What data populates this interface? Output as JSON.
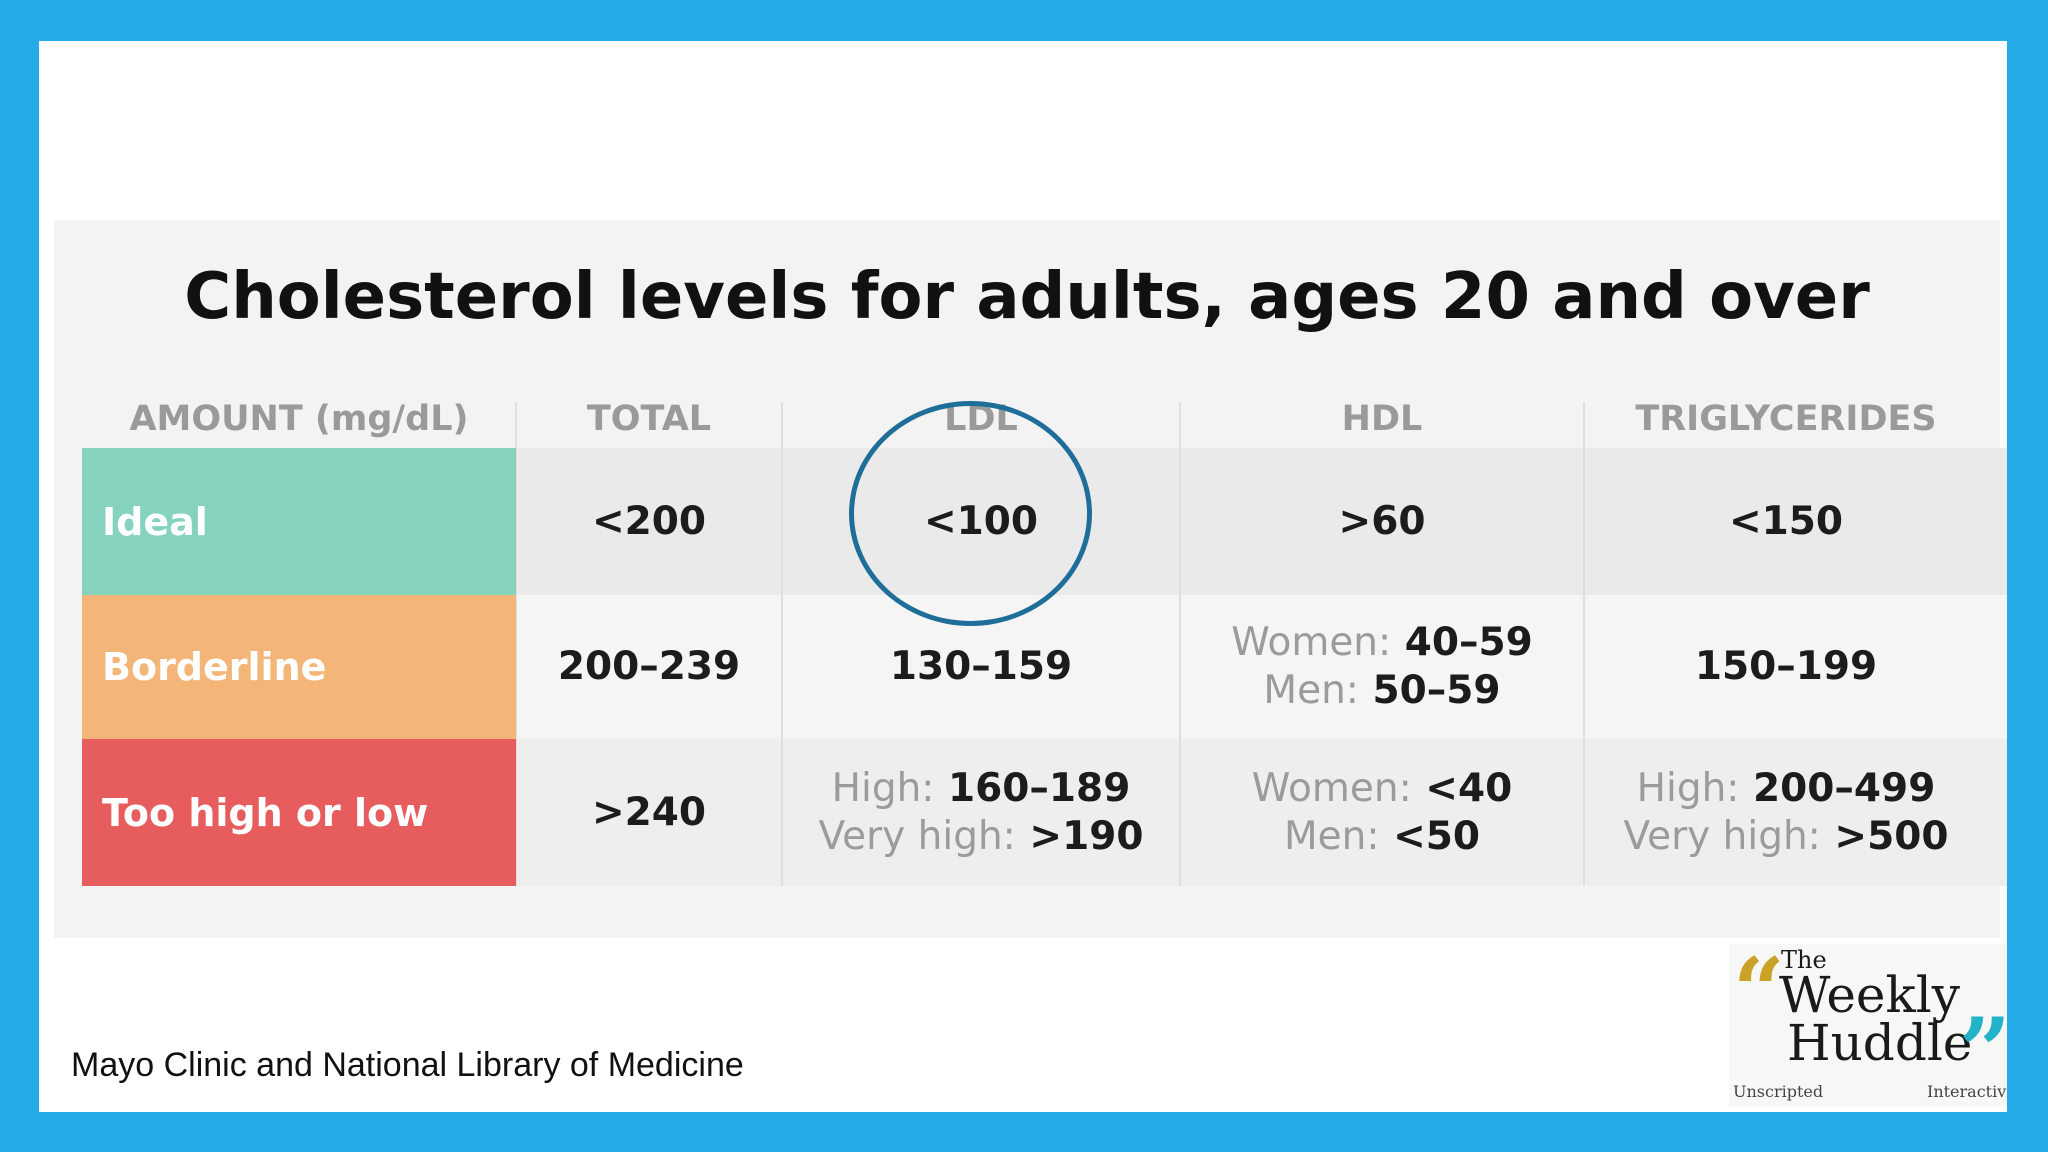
{
  "title": "Cholesterol levels for adults, ages 20 and over",
  "headers": [
    "AMOUNT (mg/dL)",
    "TOTAL",
    "LDL",
    "HDL",
    "TRIGLYCERIDES"
  ],
  "rows": [
    {
      "label": "Ideal",
      "color": "#85d2bf",
      "total": "<200",
      "ldl": "<100",
      "hdl": ">60",
      "triglycerides": "<150"
    },
    {
      "label": "Borderline",
      "color": "#f3b578",
      "total": "200–239",
      "ldl": "130–159",
      "hdl": {
        "l1": "Women:",
        "v1": "40–59",
        "l2": "Men:",
        "v2": "50–59"
      },
      "triglycerides": "150–199"
    },
    {
      "label": "Too high or low",
      "color": "#e75d5e",
      "total": ">240",
      "ldl": {
        "l1": "High:",
        "v1": "160–189",
        "l2": "Very high:",
        "v2": ">190"
      },
      "hdl": {
        "l1": "Women:",
        "v1": "<40",
        "l2": "Men:",
        "v2": "<50"
      },
      "triglycerides": {
        "l1": "High:",
        "v1": "200–499",
        "l2": "Very high:",
        "v2": ">500"
      }
    }
  ],
  "source": "Mayo Clinic and National Library of Medicine",
  "logo": {
    "the": "The",
    "weekly": "Weekly",
    "huddle": "Huddle",
    "tag_left": "Unscripted",
    "tag_right": "Interactive"
  },
  "colors": {
    "frame": "#22abe6",
    "circle": "#1e6e99"
  }
}
